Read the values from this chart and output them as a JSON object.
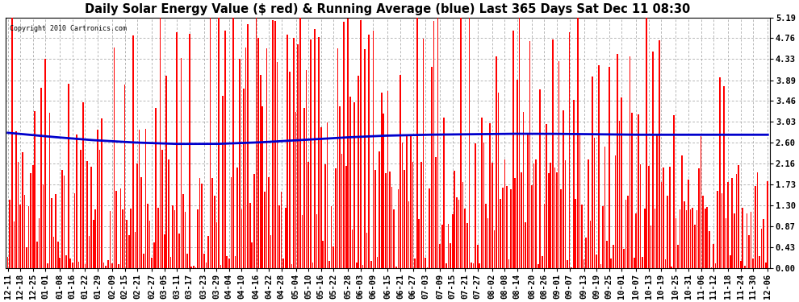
{
  "title": "Daily Solar Energy Value ($ red) & Running Average (blue) Last 365 Days Sat Dec 11 08:30",
  "copyright_text": "Copyright 2010 Cartronics.com",
  "yticks": [
    0.0,
    0.43,
    0.87,
    1.3,
    1.73,
    2.16,
    2.6,
    3.03,
    3.46,
    3.89,
    4.33,
    4.76,
    5.19
  ],
  "ylim": [
    0,
    5.19
  ],
  "bar_color": "#ff0000",
  "line_color": "#0000cc",
  "background_color": "#ffffff",
  "plot_bg_color": "#ffffff",
  "grid_color": "#999999",
  "title_fontsize": 10.5,
  "tick_fontsize": 7.5,
  "x_labels": [
    "12-11",
    "12-18",
    "12-25",
    "01-01",
    "01-08",
    "01-16",
    "01-22",
    "01-29",
    "02-09",
    "02-15",
    "02-21",
    "02-27",
    "03-05",
    "03-11",
    "03-17",
    "03-23",
    "03-29",
    "04-04",
    "04-10",
    "04-16",
    "04-22",
    "04-28",
    "05-04",
    "05-10",
    "05-16",
    "05-22",
    "05-28",
    "06-03",
    "06-09",
    "06-15",
    "06-21",
    "06-27",
    "07-03",
    "07-09",
    "07-15",
    "07-21",
    "07-27",
    "08-02",
    "08-08",
    "08-14",
    "08-20",
    "08-26",
    "09-01",
    "09-07",
    "09-13",
    "09-19",
    "09-25",
    "10-01",
    "10-07",
    "10-13",
    "10-19",
    "10-25",
    "10-31",
    "11-06",
    "11-12",
    "11-18",
    "11-24",
    "11-30",
    "12-06"
  ],
  "avg_line_points": [
    [
      0,
      2.8
    ],
    [
      20,
      2.72
    ],
    [
      40,
      2.65
    ],
    [
      60,
      2.6
    ],
    [
      80,
      2.57
    ],
    [
      100,
      2.57
    ],
    [
      120,
      2.6
    ],
    [
      140,
      2.65
    ],
    [
      160,
      2.7
    ],
    [
      180,
      2.74
    ],
    [
      200,
      2.76
    ],
    [
      220,
      2.77
    ],
    [
      240,
      2.78
    ],
    [
      260,
      2.78
    ],
    [
      280,
      2.77
    ],
    [
      300,
      2.76
    ],
    [
      320,
      2.76
    ],
    [
      340,
      2.76
    ],
    [
      364,
      2.76
    ]
  ]
}
